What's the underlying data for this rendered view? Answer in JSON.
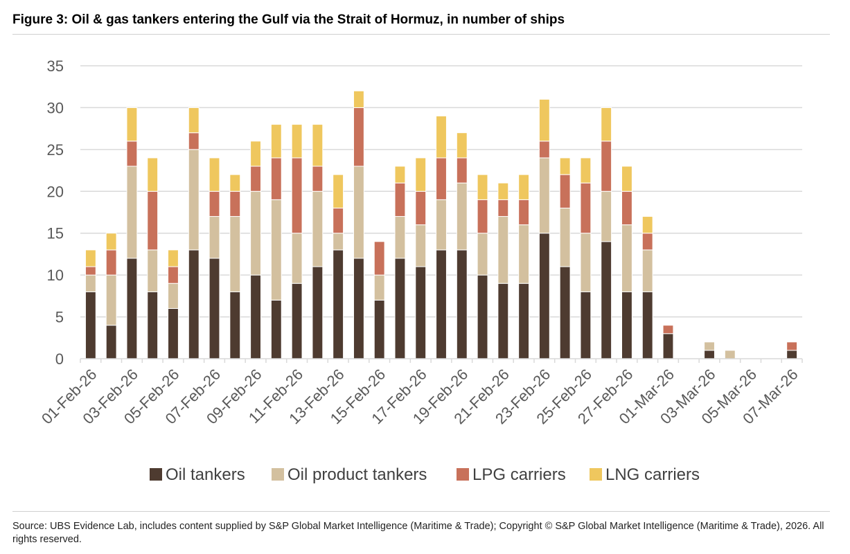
{
  "figure": {
    "title": "Figure 3: Oil & gas tankers entering the Gulf via the Strait of Hormuz, in number of ships",
    "source": "Source: UBS Evidence Lab, includes content supplied by S&P Global Market Intelligence (Maritime & Trade); Copyright © S&P Global Market Intelligence (Maritime & Trade), 2026. All rights reserved."
  },
  "chart_data": {
    "type": "bar",
    "stacked": true,
    "title": "",
    "xlabel": "",
    "ylabel": "",
    "ylim": [
      0,
      35
    ],
    "yticks": [
      0,
      5,
      10,
      15,
      20,
      25,
      30,
      35
    ],
    "grid": true,
    "legend_position": "bottom",
    "categories": [
      "01-Feb-26",
      "02-Feb-26",
      "03-Feb-26",
      "04-Feb-26",
      "05-Feb-26",
      "06-Feb-26",
      "07-Feb-26",
      "08-Feb-26",
      "09-Feb-26",
      "10-Feb-26",
      "11-Feb-26",
      "12-Feb-26",
      "13-Feb-26",
      "14-Feb-26",
      "15-Feb-26",
      "16-Feb-26",
      "17-Feb-26",
      "18-Feb-26",
      "19-Feb-26",
      "20-Feb-26",
      "21-Feb-26",
      "22-Feb-26",
      "23-Feb-26",
      "24-Feb-26",
      "25-Feb-26",
      "26-Feb-26",
      "27-Feb-26",
      "28-Feb-26",
      "01-Mar-26",
      "02-Mar-26",
      "03-Mar-26",
      "04-Mar-26",
      "05-Mar-26",
      "06-Mar-26",
      "07-Mar-26"
    ],
    "tick_labels": [
      "01-Feb-26",
      "03-Feb-26",
      "05-Feb-26",
      "07-Feb-26",
      "09-Feb-26",
      "11-Feb-26",
      "13-Feb-26",
      "15-Feb-26",
      "17-Feb-26",
      "19-Feb-26",
      "21-Feb-26",
      "23-Feb-26",
      "25-Feb-26",
      "27-Feb-26",
      "01-Mar-26",
      "03-Mar-26",
      "05-Mar-26",
      "07-Mar-26"
    ],
    "series": [
      {
        "name": "Oil tankers",
        "color": "#4e3b30",
        "values": [
          8,
          4,
          12,
          8,
          6,
          13,
          12,
          8,
          10,
          7,
          9,
          11,
          13,
          12,
          7,
          12,
          11,
          13,
          13,
          10,
          9,
          9,
          15,
          11,
          8,
          14,
          8,
          8,
          3,
          0,
          1,
          0,
          0,
          0,
          1
        ]
      },
      {
        "name": "Oil product tankers",
        "color": "#d3c09f",
        "values": [
          2,
          6,
          11,
          5,
          3,
          12,
          5,
          9,
          10,
          12,
          6,
          9,
          2,
          11,
          3,
          5,
          5,
          6,
          8,
          5,
          8,
          7,
          9,
          7,
          7,
          6,
          8,
          5,
          0,
          0,
          1,
          1,
          0,
          0,
          0
        ]
      },
      {
        "name": "LPG carriers",
        "color": "#c8715a",
        "values": [
          1,
          3,
          3,
          7,
          2,
          2,
          3,
          3,
          3,
          5,
          9,
          3,
          3,
          7,
          4,
          4,
          4,
          5,
          3,
          4,
          2,
          3,
          2,
          4,
          6,
          6,
          4,
          2,
          1,
          0,
          0,
          0,
          0,
          0,
          1
        ]
      },
      {
        "name": "LNG carriers",
        "color": "#efc75e",
        "values": [
          2,
          2,
          4,
          4,
          2,
          3,
          4,
          2,
          3,
          4,
          4,
          5,
          4,
          2,
          0,
          2,
          4,
          5,
          3,
          3,
          2,
          3,
          5,
          2,
          3,
          4,
          3,
          2,
          0,
          0,
          0,
          0,
          0,
          0,
          0
        ]
      }
    ]
  }
}
